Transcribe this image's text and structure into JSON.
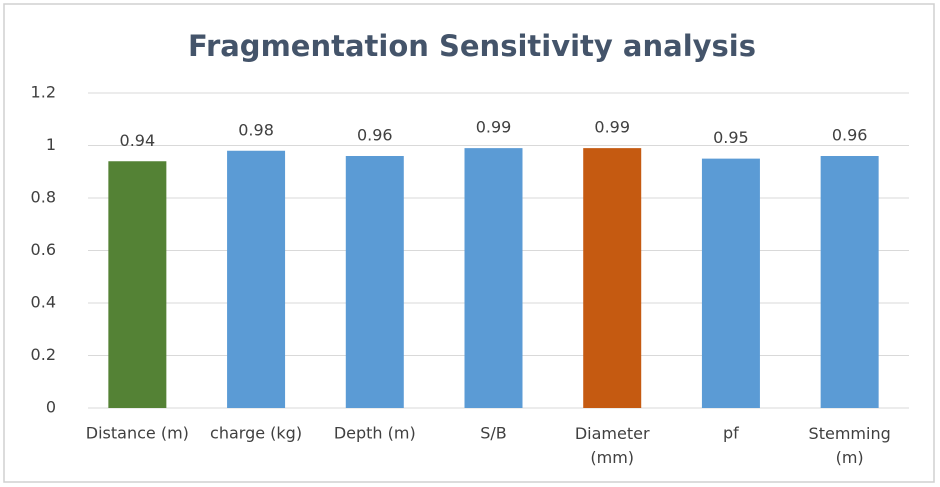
{
  "chart_data": {
    "type": "bar",
    "title": "Fragmentation Sensitivity analysis",
    "categories": [
      "Distance (m)",
      "charge (kg)",
      "Depth (m)",
      "S/B",
      "Diameter\n(mm)",
      "pf",
      "Stemming\n(m)"
    ],
    "values": [
      0.94,
      0.98,
      0.96,
      0.99,
      0.99,
      0.95,
      0.96
    ],
    "colors": [
      "#548235",
      "#5b9bd5",
      "#5b9bd5",
      "#5b9bd5",
      "#c55a11",
      "#5b9bd5",
      "#5b9bd5"
    ],
    "ylim": [
      0,
      1.2
    ],
    "yticks": [
      0,
      0.2,
      0.4,
      0.6,
      0.8,
      1,
      1.2
    ],
    "grid": true
  }
}
